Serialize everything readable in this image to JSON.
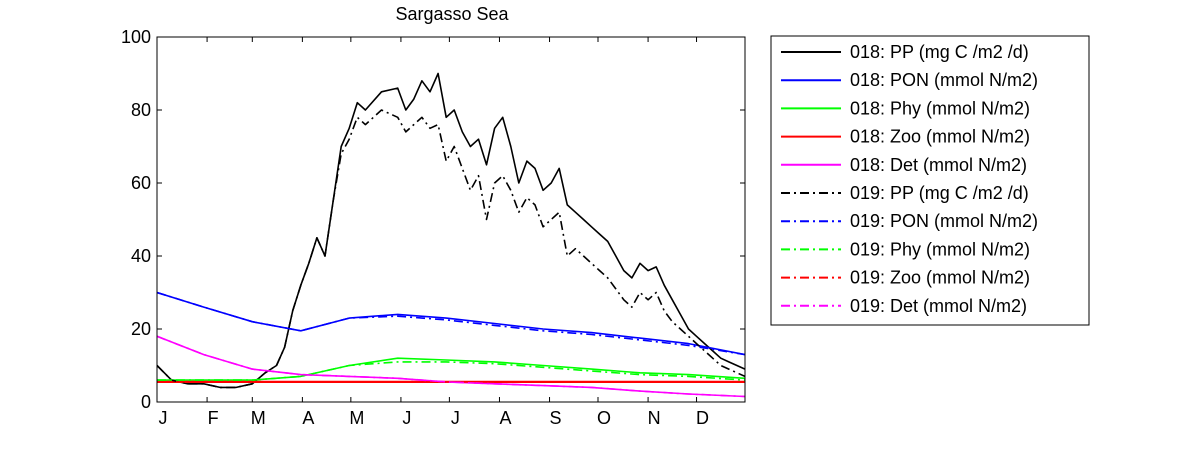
{
  "chart_data": {
    "type": "line",
    "title": "Sargasso Sea",
    "xlabel": "",
    "ylabel": "",
    "ylim": [
      0,
      100
    ],
    "xlim": [
      1,
      365
    ],
    "grid": false,
    "legend_position": "outside-right",
    "y_ticks": [
      0,
      20,
      40,
      60,
      80,
      100
    ],
    "x_ticks": [
      {
        "day": 1,
        "label": "J"
      },
      {
        "day": 32,
        "label": "F"
      },
      {
        "day": 60,
        "label": "M"
      },
      {
        "day": 91,
        "label": "A"
      },
      {
        "day": 121,
        "label": "M"
      },
      {
        "day": 152,
        "label": "J"
      },
      {
        "day": 182,
        "label": "J"
      },
      {
        "day": 213,
        "label": "A"
      },
      {
        "day": 244,
        "label": "S"
      },
      {
        "day": 274,
        "label": "O"
      },
      {
        "day": 305,
        "label": "N"
      },
      {
        "day": 335,
        "label": "D"
      }
    ],
    "series": [
      {
        "name": "018: PP (mg C /m2 /d)",
        "color": "#000000",
        "style": "solid",
        "x": [
          1,
          10,
          20,
          30,
          40,
          50,
          60,
          68,
          75,
          80,
          85,
          90,
          95,
          100,
          105,
          110,
          115,
          120,
          125,
          130,
          140,
          150,
          155,
          160,
          165,
          170,
          175,
          180,
          185,
          190,
          195,
          200,
          205,
          210,
          215,
          220,
          225,
          230,
          235,
          240,
          245,
          250,
          255,
          260,
          265,
          270,
          275,
          280,
          285,
          290,
          295,
          300,
          305,
          310,
          315,
          320,
          325,
          330,
          335,
          340,
          345,
          350,
          355,
          360,
          365
        ],
        "y": [
          10,
          6,
          5,
          5,
          4,
          4,
          5,
          8,
          10,
          15,
          25,
          32,
          38,
          45,
          40,
          55,
          70,
          75,
          82,
          80,
          85,
          86,
          80,
          83,
          88,
          85,
          90,
          78,
          80,
          74,
          70,
          72,
          65,
          75,
          78,
          70,
          60,
          66,
          64,
          58,
          60,
          64,
          54,
          52,
          50,
          48,
          46,
          44,
          40,
          36,
          34,
          38,
          36,
          37,
          32,
          28,
          24,
          20,
          18,
          16,
          14,
          12,
          11,
          10,
          9
        ]
      },
      {
        "name": "018: PON (mmol N/m2)",
        "color": "#0000ff",
        "style": "solid",
        "x": [
          1,
          30,
          60,
          90,
          120,
          150,
          180,
          210,
          240,
          270,
          300,
          330,
          365
        ],
        "y": [
          30,
          26,
          22,
          19.5,
          23,
          24,
          23,
          21.5,
          20,
          19,
          17.5,
          16,
          13
        ]
      },
      {
        "name": "018: Phy (mmol N/m2)",
        "color": "#00ff00",
        "style": "solid",
        "x": [
          1,
          30,
          60,
          90,
          120,
          150,
          180,
          210,
          240,
          270,
          300,
          330,
          365
        ],
        "y": [
          6,
          6,
          6,
          7,
          10,
          12,
          11.5,
          11,
          10,
          9,
          8,
          7.5,
          6.5
        ]
      },
      {
        "name": "018: Zoo (mmol N/m2)",
        "color": "#ff0000",
        "style": "solid",
        "x": [
          1,
          365
        ],
        "y": [
          5.5,
          5.5
        ]
      },
      {
        "name": "018: Det (mmol N/m2)",
        "color": "#ff00ff",
        "style": "solid",
        "x": [
          1,
          30,
          60,
          90,
          120,
          150,
          180,
          210,
          240,
          270,
          300,
          330,
          365
        ],
        "y": [
          18,
          13,
          9,
          7.5,
          7,
          6.5,
          5.5,
          5,
          4.5,
          4,
          3,
          2.2,
          1.5
        ]
      },
      {
        "name": "019: PP (mg C /m2 /d)",
        "color": "#000000",
        "style": "dashdot",
        "x": [
          1,
          10,
          20,
          30,
          40,
          50,
          60,
          68,
          75,
          80,
          85,
          90,
          95,
          100,
          105,
          110,
          115,
          120,
          125,
          130,
          140,
          150,
          155,
          160,
          165,
          170,
          175,
          180,
          185,
          190,
          195,
          200,
          205,
          210,
          215,
          220,
          225,
          230,
          235,
          240,
          245,
          250,
          255,
          260,
          265,
          270,
          275,
          280,
          285,
          290,
          295,
          300,
          305,
          310,
          315,
          320,
          325,
          330,
          335,
          340,
          345,
          350,
          355,
          360,
          365
        ],
        "y": [
          10,
          6,
          5,
          5,
          4,
          4,
          5,
          8,
          10,
          15,
          25,
          32,
          38,
          45,
          40,
          55,
          68,
          72,
          78,
          76,
          80,
          78,
          74,
          76,
          78,
          75,
          76,
          66,
          70,
          64,
          58,
          62,
          50,
          60,
          62,
          58,
          52,
          56,
          54,
          48,
          50,
          52,
          40,
          42,
          40,
          38,
          36,
          34,
          31,
          28,
          26,
          30,
          28,
          30,
          25,
          22,
          20,
          18,
          16,
          14,
          12,
          10,
          9,
          8,
          7
        ]
      },
      {
        "name": "019: PON (mmol N/m2)",
        "color": "#0000ff",
        "style": "dashdot",
        "x": [
          1,
          30,
          60,
          90,
          120,
          150,
          180,
          210,
          240,
          270,
          300,
          330,
          365
        ],
        "y": [
          30,
          26,
          22,
          19.5,
          23,
          23.5,
          22.5,
          21,
          19.5,
          18.5,
          17,
          15.5,
          13
        ]
      },
      {
        "name": "019: Phy (mmol N/m2)",
        "color": "#00ff00",
        "style": "dashdot",
        "x": [
          1,
          30,
          60,
          90,
          120,
          150,
          180,
          210,
          240,
          270,
          300,
          330,
          365
        ],
        "y": [
          6,
          6,
          6,
          7,
          10,
          11,
          11,
          10.5,
          9.5,
          8.5,
          7.5,
          7,
          6
        ]
      },
      {
        "name": "019: Zoo (mmol N/m2)",
        "color": "#ff0000",
        "style": "dashdot",
        "x": [
          1,
          365
        ],
        "y": [
          5.5,
          5.5
        ]
      },
      {
        "name": "019: Det (mmol N/m2)",
        "color": "#ff00ff",
        "style": "dashdot",
        "x": [
          1,
          30,
          60,
          90,
          120,
          150,
          180,
          210,
          240,
          270,
          300,
          330,
          365
        ],
        "y": [
          18,
          13,
          9,
          7.5,
          7,
          6.5,
          5.5,
          5,
          4.5,
          4,
          3,
          2.2,
          1.5
        ]
      }
    ]
  }
}
